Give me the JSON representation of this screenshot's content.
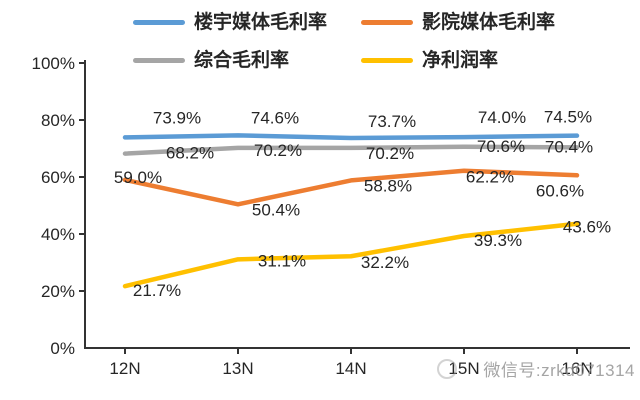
{
  "chart_data": {
    "type": "line",
    "title": "",
    "categories": [
      "12N",
      "13N",
      "14N",
      "15N",
      "16N"
    ],
    "series": [
      {
        "name": "楼宇媒体毛利率",
        "color": "#5B9BD5",
        "values": [
          73.9,
          74.6,
          73.7,
          74.0,
          74.5
        ]
      },
      {
        "name": "影院媒体毛利率",
        "color": "#ED7D31",
        "values": [
          59.0,
          50.4,
          58.8,
          62.2,
          60.6
        ]
      },
      {
        "name": "综合毛利率",
        "color": "#A5A5A5",
        "values": [
          68.2,
          70.2,
          70.2,
          70.6,
          70.4
        ]
      },
      {
        "name": "净利润率",
        "color": "#FFC000",
        "values": [
          21.7,
          31.1,
          32.2,
          39.3,
          43.6
        ]
      }
    ],
    "y_ticks": [
      {
        "value": 100,
        "label": "100%"
      },
      {
        "value": 80,
        "label": "80%"
      },
      {
        "value": 60,
        "label": "60%"
      },
      {
        "value": 40,
        "label": "40%"
      },
      {
        "value": 20,
        "label": "20%"
      },
      {
        "value": 0,
        "label": "0%"
      }
    ],
    "ylim": [
      0,
      100
    ],
    "grid": false,
    "legend_position": "top",
    "data_label_format": "one_decimal_percent",
    "axis_color": "#333333",
    "text_color": "#262626"
  },
  "watermark": {
    "text": "微信号:zrkd071314"
  }
}
